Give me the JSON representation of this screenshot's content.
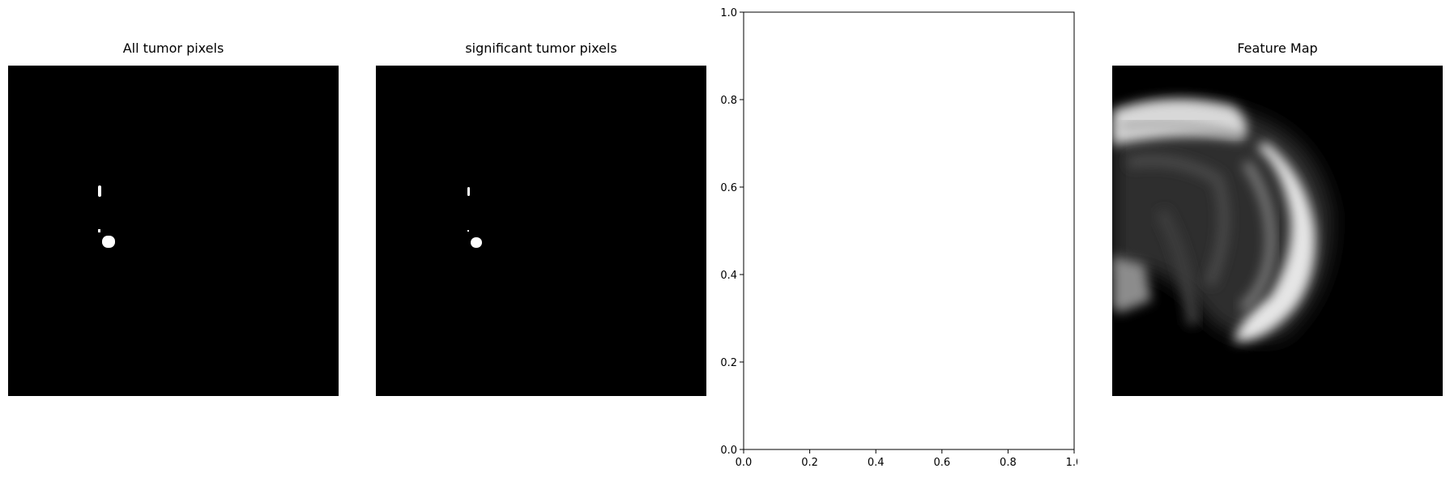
{
  "chart_data": [
    {
      "type": "image",
      "title": "All tumor pixels",
      "colormap": "gray"
    },
    {
      "type": "image",
      "title": "significant tumor pixels",
      "colormap": "gray"
    },
    {
      "type": "scatter",
      "title": "",
      "xlabel": "",
      "ylabel": "",
      "xlim": [
        0.0,
        1.0
      ],
      "ylim": [
        0.0,
        1.0
      ],
      "xticks": [
        "0.0",
        "0.2",
        "0.4",
        "0.6",
        "0.8",
        "1.0"
      ],
      "yticks": [
        "0.0",
        "0.2",
        "0.4",
        "0.6",
        "0.8",
        "1.0"
      ],
      "series": []
    },
    {
      "type": "image",
      "title": "Feature Map",
      "colormap": "gray"
    }
  ]
}
